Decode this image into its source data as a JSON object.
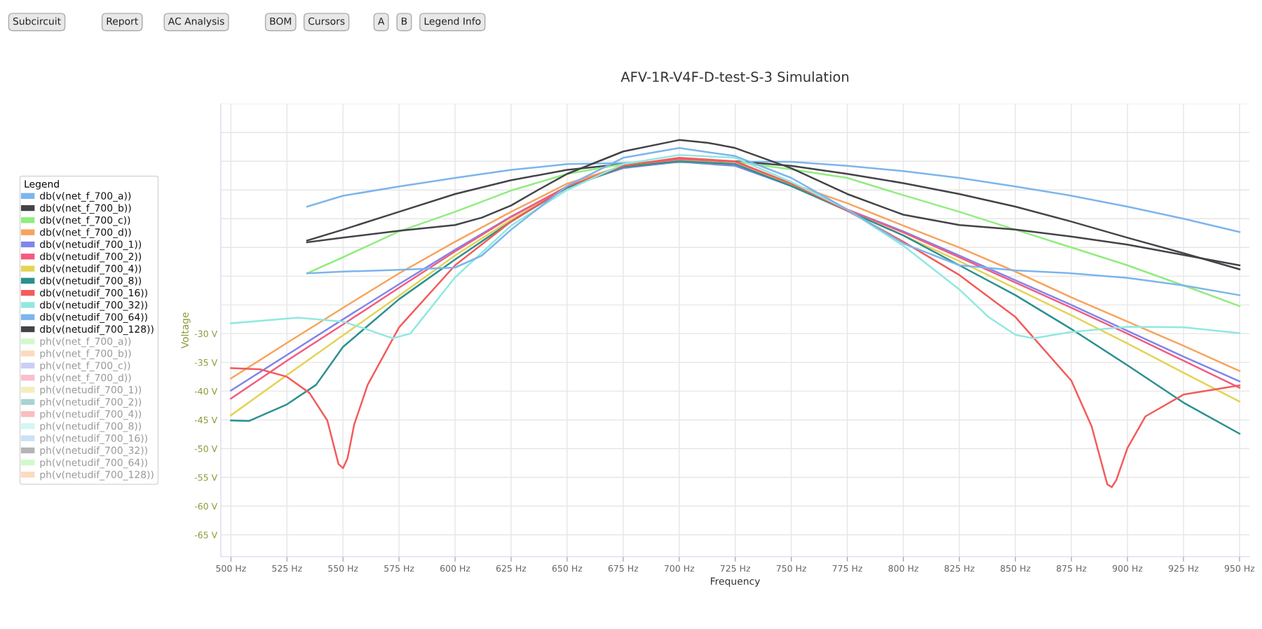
{
  "chart_data": {
    "type": "line",
    "title": "AFV-1R-V4F-D-test-S-3 Simulation",
    "xlabel": "Frequency",
    "ylabel": "Voltage",
    "legend_title": "Legend",
    "legend": "left",
    "grid": true,
    "marker": "none",
    "line_style": "solid",
    "annotations": [
      "Subcircuit",
      "Report",
      "AC Analysis",
      "BOM",
      "Cursors",
      "A",
      "B",
      "Legend Info"
    ],
    "xlim": [
      495.5,
      954.4
    ],
    "ylim": [
      -68.8,
      10
    ],
    "xticks": [
      {
        "value": 500,
        "label": "500 Hz"
      },
      {
        "value": 525,
        "label": "525 Hz"
      },
      {
        "value": 550,
        "label": "550 Hz"
      },
      {
        "value": 575,
        "label": "575 Hz"
      },
      {
        "value": 600,
        "label": "600 Hz"
      },
      {
        "value": 625,
        "label": "625 Hz"
      },
      {
        "value": 650,
        "label": "650 Hz"
      },
      {
        "value": 675,
        "label": "675 Hz"
      },
      {
        "value": 700,
        "label": "700 Hz"
      },
      {
        "value": 725,
        "label": "725 Hz"
      },
      {
        "value": 750,
        "label": "750 Hz"
      },
      {
        "value": 775,
        "label": "775 Hz"
      },
      {
        "value": 800,
        "label": "800 Hz"
      },
      {
        "value": 825,
        "label": "825 Hz"
      },
      {
        "value": 850,
        "label": "850 Hz"
      },
      {
        "value": 875,
        "label": "875 Hz"
      },
      {
        "value": 900,
        "label": "900 Hz"
      },
      {
        "value": 925,
        "label": "925 Hz"
      },
      {
        "value": 950,
        "label": "950 Hz"
      }
    ],
    "yticks": [
      {
        "value": -65,
        "label": "-65 V"
      },
      {
        "value": -60,
        "label": "-60 V"
      },
      {
        "value": -55,
        "label": "-55 V"
      },
      {
        "value": -50,
        "label": "-50 V"
      },
      {
        "value": -45,
        "label": "-45 V"
      },
      {
        "value": -40,
        "label": "-40 V"
      },
      {
        "value": -35,
        "label": "-35 V"
      },
      {
        "value": -30,
        "label": "-30 V"
      },
      {
        "value": -25,
        "label": null
      },
      {
        "value": -20,
        "label": null
      },
      {
        "value": -15,
        "label": null
      },
      {
        "value": -10,
        "label": null
      },
      {
        "value": -5,
        "label": null
      },
      {
        "value": 0,
        "label": null
      },
      {
        "value": 5,
        "label": null
      },
      {
        "value": 10,
        "label": null
      }
    ],
    "series": [
      {
        "name": "db(v(net_f_700_a))",
        "color": "#7cb5ec",
        "x": [
          534,
          550,
          575,
          600,
          625,
          650,
          675,
          700,
          750,
          775,
          800,
          825,
          850,
          875,
          900,
          925,
          950
        ],
        "values": [
          -7.9,
          -6.0,
          -4.4,
          -2.9,
          -1.5,
          -0.5,
          -0.3,
          -0.1,
          -0.1,
          -0.8,
          -1.7,
          -2.9,
          -4.4,
          -6.0,
          -7.9,
          -10.0,
          -12.3
        ]
      },
      {
        "name": "db(v(net_f_700_b))",
        "color": "#434348",
        "x": [
          534,
          550,
          575,
          600,
          625,
          650,
          675,
          700,
          725,
          750,
          775,
          800,
          825,
          850,
          875,
          900,
          925,
          950
        ],
        "values": [
          -13.8,
          -11.9,
          -8.8,
          -5.7,
          -3.3,
          -1.5,
          -0.5,
          -0.1,
          0.0,
          -0.8,
          -2.2,
          -3.8,
          -5.7,
          -7.9,
          -10.5,
          -13.3,
          -16.0,
          -18.8
        ]
      },
      {
        "name": "db(v(net_f_700_c))",
        "color": "#90ed7d",
        "x": [
          534,
          550,
          575,
          600,
          625,
          650,
          675,
          700,
          725,
          750,
          775,
          800,
          825,
          850,
          875,
          900,
          925,
          950
        ],
        "values": [
          -19.5,
          -16.7,
          -12.2,
          -8.8,
          -5.1,
          -2.2,
          -0.5,
          0.2,
          -0.1,
          -1.4,
          -2.9,
          -5.9,
          -8.8,
          -11.9,
          -15.0,
          -18.1,
          -21.6,
          -25.2
        ]
      },
      {
        "name": "db(v(net_f_700_d))",
        "color": "#f7a35c",
        "x": [
          500,
          525,
          550,
          575,
          600,
          625,
          650,
          675,
          700,
          725,
          750,
          775,
          800,
          825,
          850,
          875,
          900,
          925,
          950
        ],
        "values": [
          -37.8,
          -31.6,
          -25.5,
          -19.5,
          -14.0,
          -8.8,
          -3.9,
          -0.8,
          0.1,
          -0.5,
          -3.9,
          -7.3,
          -11.2,
          -15.0,
          -19.2,
          -23.7,
          -27.9,
          -32.1,
          -36.5
        ]
      },
      {
        "name": "db(v(netudif_700_1))",
        "color": "#8085e9",
        "x": [
          500,
          525,
          550,
          575,
          600,
          625,
          650,
          675,
          700,
          725,
          750,
          775,
          800,
          825,
          850,
          875,
          900,
          925,
          950
        ],
        "values": [
          -39.9,
          -33.7,
          -27.5,
          -21.4,
          -15.4,
          -9.6,
          -4.4,
          -1.2,
          -0.1,
          -0.8,
          -4.3,
          -8.4,
          -12.2,
          -16.4,
          -20.7,
          -25.0,
          -29.5,
          -34.0,
          -38.3
        ]
      },
      {
        "name": "db(v(netudif_700_2))",
        "color": "#f15c80",
        "x": [
          500,
          525,
          550,
          575,
          600,
          625,
          650,
          675,
          700,
          725,
          750,
          775,
          800,
          825,
          850,
          875,
          900,
          925,
          950
        ],
        "values": [
          -41.3,
          -34.7,
          -28.4,
          -22.0,
          -15.7,
          -9.7,
          -4.4,
          -1.0,
          0.4,
          -0.1,
          -3.9,
          -8.4,
          -12.4,
          -16.7,
          -21.1,
          -25.5,
          -30.0,
          -34.7,
          -39.4
        ]
      },
      {
        "name": "db(v(netudif_700_4))",
        "color": "#e4d354",
        "x": [
          500,
          525,
          550,
          575,
          600,
          625,
          650,
          675,
          700,
          725,
          750,
          775,
          800,
          825,
          850,
          875,
          900,
          925,
          950
        ],
        "values": [
          -44.2,
          -37.2,
          -30.3,
          -23.4,
          -16.4,
          -10.2,
          -4.6,
          -1.0,
          0.0,
          -0.5,
          -4.1,
          -8.6,
          -12.9,
          -17.4,
          -22.1,
          -26.8,
          -31.7,
          -36.8,
          -41.8
        ]
      },
      {
        "name": "db(v(netudif_700_8))",
        "color": "#2b908f",
        "x": [
          500,
          508,
          525,
          538,
          550,
          575,
          600,
          625,
          650,
          675,
          700,
          725,
          750,
          775,
          800,
          825,
          850,
          875,
          900,
          925,
          950
        ],
        "values": [
          -45.1,
          -45.2,
          -42.3,
          -38.9,
          -32.3,
          -24.0,
          -17.1,
          -10.5,
          -4.6,
          -1.0,
          0.0,
          -0.5,
          -4.3,
          -8.6,
          -12.9,
          -18.1,
          -23.3,
          -29.2,
          -35.5,
          -42.0,
          -47.4
        ]
      },
      {
        "name": "db(v(netudif_700_16))",
        "color": "#f45b5b",
        "x": [
          500,
          513,
          525,
          535,
          543,
          548,
          550,
          552,
          555,
          561,
          575,
          600,
          625,
          650,
          675,
          700,
          725,
          750,
          775,
          800,
          825,
          850,
          875,
          884,
          891,
          893,
          895,
          900,
          908,
          925,
          950
        ],
        "values": [
          -36.0,
          -36.2,
          -37.5,
          -40.3,
          -45.1,
          -52.7,
          -53.4,
          -51.7,
          -45.8,
          -38.9,
          -28.9,
          -18.1,
          -10.5,
          -4.4,
          -0.8,
          0.6,
          0.0,
          -3.9,
          -8.6,
          -14.0,
          -19.8,
          -27.1,
          -38.2,
          -46.1,
          -56.2,
          -56.7,
          -55.5,
          -49.9,
          -44.4,
          -40.6,
          -39.0
        ]
      },
      {
        "name": "db(v(netudif_700_32))",
        "color": "#91e8e1",
        "x": [
          500,
          530,
          550,
          561,
          572,
          580,
          600,
          625,
          650,
          675,
          700,
          725,
          750,
          775,
          800,
          825,
          838,
          850,
          858,
          875,
          900,
          925,
          950
        ],
        "values": [
          -28.2,
          -27.2,
          -27.9,
          -29.3,
          -30.8,
          -30.0,
          -20.2,
          -11.2,
          -5.0,
          -0.5,
          1.1,
          0.6,
          -3.6,
          -8.4,
          -14.7,
          -22.3,
          -27.1,
          -30.2,
          -30.8,
          -29.7,
          -28.8,
          -28.9,
          -29.9
        ]
      },
      {
        "name": "db(v(netudif_700_64))",
        "color": "#7cb5ec",
        "x": [
          534,
          550,
          575,
          600,
          612,
          625,
          650,
          675,
          700,
          725,
          750,
          775,
          800,
          825,
          850,
          875,
          900,
          925,
          950
        ],
        "values": [
          -19.5,
          -19.2,
          -18.9,
          -18.5,
          -16.4,
          -11.9,
          -4.3,
          0.6,
          2.3,
          0.9,
          -2.9,
          -8.4,
          -14.3,
          -18.1,
          -19.0,
          -19.5,
          -20.3,
          -21.6,
          -23.3
        ]
      },
      {
        "name": "db(v(netudif_700_128))",
        "color": "#434348",
        "x": [
          534,
          550,
          575,
          600,
          612,
          625,
          637,
          650,
          675,
          700,
          713,
          725,
          750,
          775,
          800,
          825,
          850,
          875,
          900,
          925,
          950
        ],
        "values": [
          -14.1,
          -13.3,
          -12.1,
          -11.1,
          -9.8,
          -7.7,
          -5.0,
          -2.2,
          1.7,
          3.7,
          3.2,
          2.3,
          -1.2,
          -5.7,
          -9.3,
          -11.1,
          -11.9,
          -13.1,
          -14.5,
          -16.3,
          -18.1
        ]
      },
      {
        "name": "ph(v(net_f_700_a))",
        "color": "#90ed7d"
      },
      {
        "name": "ph(v(net_f_700_b))",
        "color": "#f7a35c"
      },
      {
        "name": "ph(v(net_f_700_c))",
        "color": "#8085e9"
      },
      {
        "name": "ph(v(net_f_700_d))",
        "color": "#f15c80"
      },
      {
        "name": "ph(v(netudif_700_1))",
        "color": "#e4d354"
      },
      {
        "name": "ph(v(netudif_700_2))",
        "color": "#2b908f"
      },
      {
        "name": "ph(v(netudif_700_4))",
        "color": "#f45b5b"
      },
      {
        "name": "ph(v(netudif_700_8))",
        "color": "#91e8e1"
      },
      {
        "name": "ph(v(netudif_700_16))",
        "color": "#7cb5ec"
      },
      {
        "name": "ph(v(netudif_700_32))",
        "color": "#434348"
      },
      {
        "name": "ph(v(netudif_700_64))",
        "color": "#90ed7d"
      },
      {
        "name": "ph(v(netudif_700_128))",
        "color": "#f7a35c"
      }
    ]
  }
}
